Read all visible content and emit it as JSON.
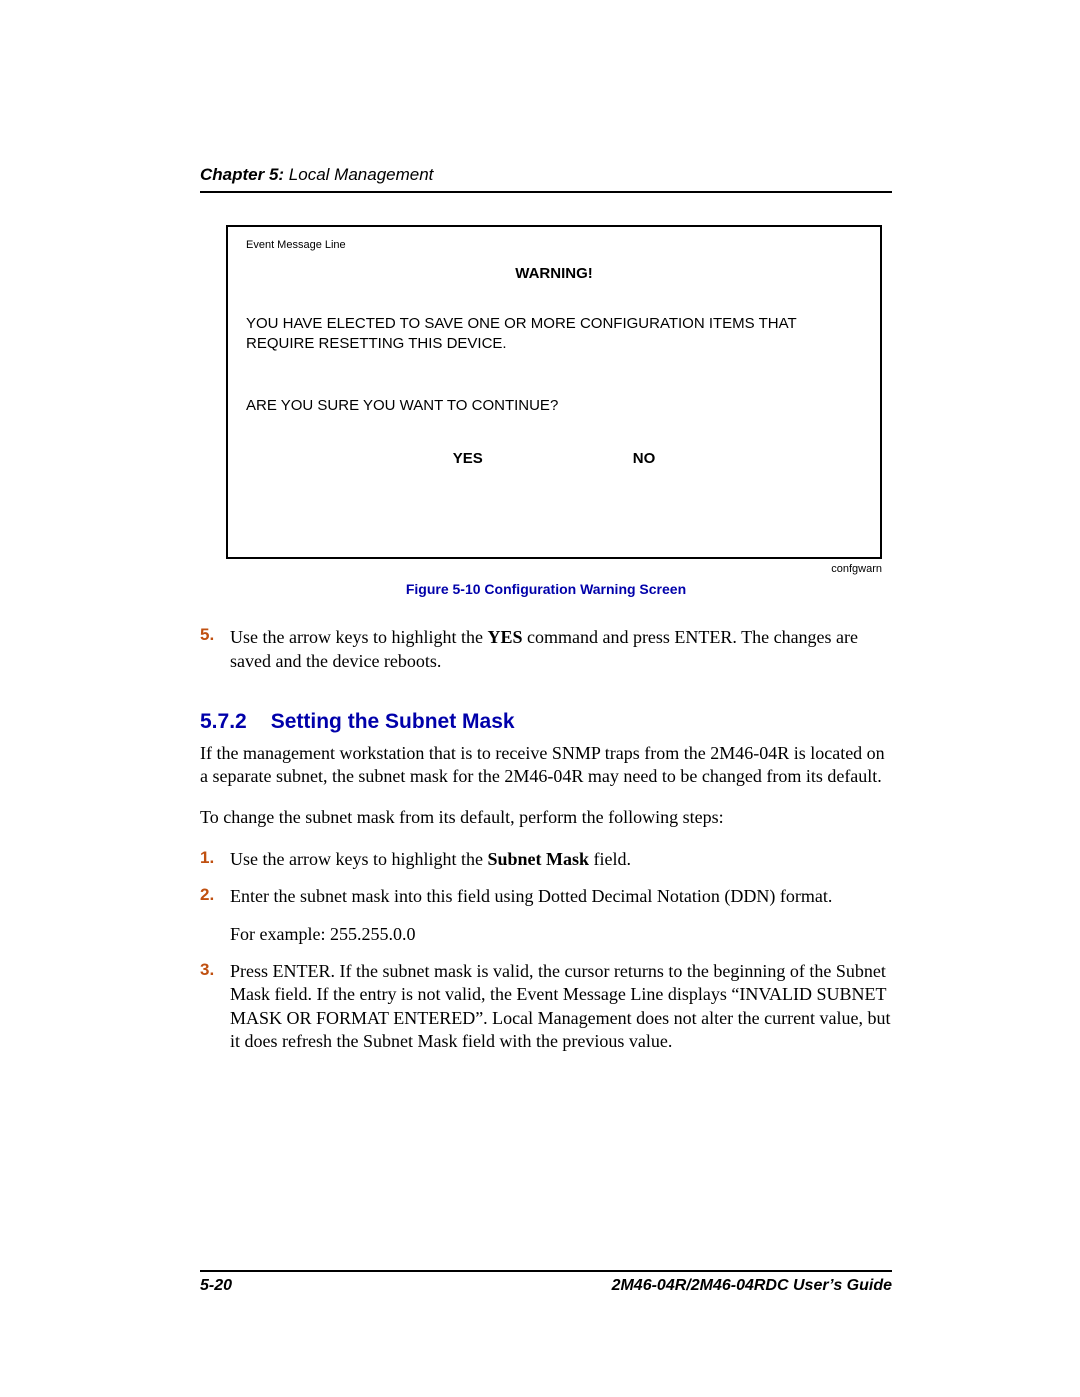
{
  "header": {
    "chapter_label": "Chapter 5:",
    "chapter_title": " Local Management"
  },
  "warning_box": {
    "event_line": "Event Message Line",
    "title": "WARNING!",
    "body": "YOU HAVE ELECTED TO SAVE ONE OR MORE CONFIGURATION ITEMS THAT REQUIRE RESETTING THIS DEVICE.",
    "question": "ARE YOU SURE YOU WANT TO CONTINUE?",
    "yes": "YES",
    "no": "NO"
  },
  "figure": {
    "source": "confgwarn",
    "caption": "Figure 5-10   Configuration Warning Screen"
  },
  "step5": {
    "num": "5.",
    "part1": "Use the arrow keys to highlight the ",
    "bold": "YES",
    "part2": " command and press ENTER. The changes are saved and the device reboots."
  },
  "section": {
    "number": "5.7.2",
    "title": "Setting the Subnet Mask"
  },
  "para1": "If the management workstation that is to receive SNMP traps from the 2M46-04R is located on a separate subnet, the subnet mask for the 2M46-04R may need to be changed from its default.",
  "para2": "To change the subnet mask from its default, perform the following steps:",
  "steps": {
    "s1": {
      "num": "1.",
      "part1": "Use the arrow keys to highlight the ",
      "bold": "Subnet Mask",
      "part2": " field."
    },
    "s2": {
      "num": "2.",
      "text": "Enter the subnet mask into this field using Dotted Decimal Notation (DDN) format.",
      "sub": "For example: 255.255.0.0"
    },
    "s3": {
      "num": "3.",
      "text": "Press ENTER. If the subnet mask is valid, the cursor returns to the beginning of the Subnet Mask field. If the entry is not valid, the Event Message Line displays “INVALID SUBNET MASK OR FORMAT ENTERED”. Local Management does not alter the current value, but it does refresh the Subnet Mask field with the previous value."
    }
  },
  "footer": {
    "page": "5-20",
    "guide": "2M46-04R/2M46-04RDC User’s Guide"
  },
  "colors": {
    "accent_blue": "#0000aa",
    "accent_orange": "#c05010"
  }
}
